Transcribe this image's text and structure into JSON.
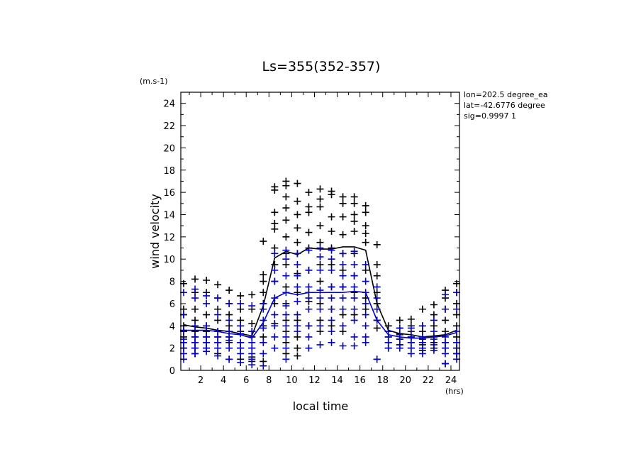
{
  "chart_data": {
    "type": "scatter",
    "title": "Ls=355(352-357)",
    "xlabel": "local time",
    "x_unit": "(hrs)",
    "ylabel": "wind velocity",
    "y_unit": "(m.s-1)",
    "xlim": [
      0.25,
      24.75
    ],
    "ylim": [
      0,
      25
    ],
    "x_ticks": [
      2,
      4,
      6,
      8,
      10,
      12,
      14,
      16,
      18,
      20,
      22,
      24
    ],
    "y_ticks": [
      0,
      2,
      4,
      6,
      8,
      10,
      12,
      14,
      16,
      18,
      20,
      22,
      24
    ],
    "grid": false,
    "info_lines": [
      "lon=202.5 degree_ea",
      "lat=-42.6776 degree",
      "sig=0.9997 1"
    ],
    "colors": {
      "black_series": "#000000",
      "blue_series": "#0000cc"
    },
    "hours": [
      0.5,
      1.5,
      2.5,
      3.5,
      4.5,
      5.5,
      6.5,
      7.5,
      8.5,
      9.5,
      10.5,
      11.5,
      12.5,
      13.5,
      14.5,
      15.5,
      16.5,
      17.5,
      18.5,
      19.5,
      20.5,
      21.5,
      22.5,
      23.5,
      24.5
    ],
    "series": [
      {
        "marker": "cross",
        "color": "#000000",
        "values": [
          [
            7.8,
            5.5,
            5.0,
            4.0,
            3.5,
            3.0,
            2.5,
            2.0
          ],
          [
            8.2,
            7.0,
            5.5,
            4.5,
            3.5,
            3.0,
            2.5,
            2.0,
            1.5
          ],
          [
            8.1,
            7.0,
            5.0,
            4.0,
            3.5,
            3.0,
            2.5,
            2.0
          ],
          [
            7.7,
            6.5,
            5.5,
            4.5,
            3.5,
            3.0,
            2.5,
            1.5
          ],
          [
            7.2,
            6.0,
            5.0,
            4.0,
            3.5,
            3.0,
            2.5,
            1.0
          ],
          [
            6.7,
            5.5,
            4.5,
            4.0,
            3.5,
            2.5,
            2.0,
            1.0
          ],
          [
            6.8,
            5.5,
            4.2,
            3.5,
            3.0,
            2.0,
            1.2,
            0.8
          ],
          [
            11.6,
            8.6,
            8.0,
            7.0,
            6.0,
            4.0,
            3.0,
            2.5,
            0.8
          ],
          [
            16.5,
            16.2,
            14.2,
            13.2,
            12.7,
            11.0,
            9.5,
            8.0,
            6.0,
            4.2
          ],
          [
            17.0,
            16.6,
            15.6,
            14.6,
            13.5,
            12.0,
            10.5,
            9.5,
            7.5,
            6.0,
            4.5,
            3.5,
            2.5,
            1.5
          ],
          [
            16.8,
            15.2,
            14.0,
            12.8,
            11.5,
            10.5,
            8.7,
            7.0,
            4.5,
            3.0,
            2.0,
            1.3
          ],
          [
            16.0,
            14.7,
            14.2,
            12.4,
            11.0,
            9.0,
            7.0,
            6.2,
            4.0
          ],
          [
            16.3,
            15.4,
            14.7,
            13.0,
            11.5,
            9.5,
            8.0,
            6.0,
            4.5,
            3.5
          ],
          [
            16.1,
            15.8,
            13.8,
            12.5,
            11.0,
            9.5,
            7.5,
            5.5,
            4.0
          ],
          [
            15.6,
            15.0,
            13.8,
            12.2,
            10.5,
            9.0,
            7.5,
            5.0,
            3.5
          ],
          [
            15.6,
            15.0,
            14.0,
            13.4,
            12.5,
            10.5,
            8.5,
            7.0,
            5.0
          ],
          [
            14.8,
            14.2,
            13.0,
            12.3,
            11.5,
            9.0,
            6.5,
            5.5
          ],
          [
            11.3,
            9.5,
            8.5,
            7.0,
            6.0,
            4.5,
            3.8,
            1.0
          ],
          [
            4.0,
            3.5,
            3.0,
            2.5,
            2.0
          ],
          [
            4.5,
            3.8,
            3.3,
            2.8,
            2.3
          ],
          [
            4.6,
            4.0,
            3.5,
            3.0,
            2.5,
            2.0
          ],
          [
            5.5,
            4.0,
            3.5,
            2.8,
            2.3,
            1.8
          ],
          [
            5.9,
            5.0,
            4.0,
            3.0,
            2.5,
            2.0
          ],
          [
            7.2,
            6.5,
            5.5,
            4.5,
            3.5,
            2.5,
            2.0,
            0.6
          ],
          [
            7.8,
            7.0,
            6.0,
            5.0,
            4.0,
            3.0,
            2.0,
            1.5
          ]
        ],
        "mean": [
          4.1,
          3.9,
          3.8,
          3.6,
          3.5,
          3.3,
          3.1,
          5.8,
          10.1,
          10.7,
          10.4,
          11.0,
          10.9,
          10.9,
          11.1,
          11.1,
          10.8,
          6.0,
          3.6,
          3.3,
          3.2,
          3.0,
          3.1,
          3.2,
          3.6
        ]
      },
      {
        "marker": "cross",
        "color": "#0000cc",
        "values": [
          [
            7.0,
            5.0,
            3.6,
            2.8,
            2.5,
            2.0,
            1.5,
            1.0
          ],
          [
            7.3,
            6.5,
            4.0,
            3.0,
            2.5,
            2.0,
            1.5
          ],
          [
            6.7,
            6.0,
            4.0,
            3.0,
            2.5,
            2.0,
            1.7
          ],
          [
            6.5,
            5.0,
            3.5,
            3.0,
            2.5,
            2.0,
            1.3
          ],
          [
            6.0,
            4.5,
            3.5,
            3.0,
            2.7,
            2.0,
            1.0
          ],
          [
            6.0,
            4.0,
            3.3,
            2.5,
            2.0,
            1.5,
            0.7
          ],
          [
            5.8,
            3.5,
            3.0,
            2.5,
            2.0,
            1.5,
            1.0,
            0.5
          ],
          [
            6.0,
            5.5,
            4.5,
            3.8,
            2.5,
            1.5,
            0.4
          ],
          [
            10.5,
            9.0,
            8.0,
            6.5,
            5.0,
            4.0,
            3.0,
            2.0
          ],
          [
            10.8,
            10.0,
            8.5,
            7.0,
            5.8,
            5.0,
            4.0,
            3.0,
            2.0,
            1.0
          ],
          [
            10.5,
            9.5,
            8.5,
            7.5,
            6.2,
            5.0,
            4.0,
            3.5
          ],
          [
            10.8,
            9.0,
            7.5,
            6.5,
            5.5,
            4.0,
            3.0,
            2.0
          ],
          [
            11.0,
            10.2,
            9.0,
            7.2,
            6.5,
            5.5,
            4.0,
            2.3
          ],
          [
            10.8,
            10.0,
            9.0,
            7.5,
            6.5,
            5.5,
            4.5,
            3.5,
            2.5
          ],
          [
            10.5,
            9.5,
            8.5,
            7.5,
            6.5,
            5.5,
            4.0,
            2.2
          ],
          [
            10.7,
            9.5,
            8.5,
            7.5,
            6.5,
            5.5,
            4.5,
            3.0,
            2.2
          ],
          [
            9.5,
            8.0,
            7.0,
            6.0,
            5.0,
            4.0,
            3.0,
            2.5
          ],
          [
            7.5,
            6.5,
            5.5,
            4.5,
            1.0
          ],
          [
            3.5,
            3.0,
            2.5,
            2.0
          ],
          [
            3.8,
            3.2,
            2.8,
            2.3,
            2.0
          ],
          [
            3.8,
            3.0,
            2.5,
            2.0,
            1.5
          ],
          [
            4.0,
            3.0,
            2.5,
            2.0,
            1.5
          ],
          [
            4.5,
            3.5,
            2.8,
            2.3,
            1.8
          ],
          [
            6.8,
            5.5,
            3.0,
            2.5,
            2.0,
            1.5,
            0.6
          ],
          [
            7.0,
            5.5,
            3.5,
            2.5,
            2.0,
            1.5,
            1.0
          ]
        ],
        "mean": [
          3.6,
          3.6,
          3.6,
          3.5,
          3.3,
          3.2,
          2.9,
          4.3,
          6.5,
          7.0,
          6.8,
          7.0,
          7.0,
          7.0,
          7.0,
          7.1,
          7.0,
          4.5,
          3.2,
          3.0,
          2.9,
          2.9,
          3.0,
          3.1,
          3.4
        ]
      }
    ]
  }
}
